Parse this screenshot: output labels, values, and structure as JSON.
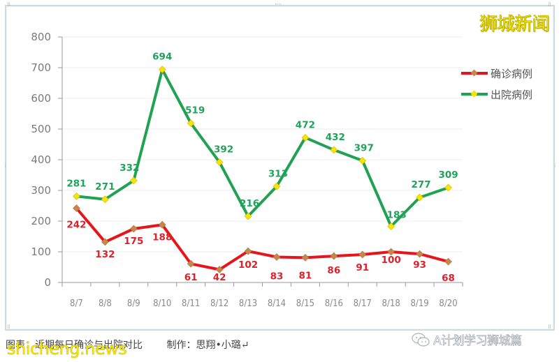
{
  "chart_data": {
    "type": "line",
    "title": "",
    "xlabel": "",
    "ylabel": "",
    "categories": [
      "8/7",
      "8/8",
      "8/9",
      "8/10",
      "8/11",
      "8/12",
      "8/13",
      "8/14",
      "8/15",
      "8/16",
      "8/17",
      "8/18",
      "8/19",
      "8/20"
    ],
    "series": [
      {
        "name": "确诊病例",
        "color": "#e8141c",
        "marker_color": "#c8874a",
        "values": [
          242,
          132,
          175,
          188,
          61,
          42,
          102,
          83,
          81,
          86,
          91,
          100,
          93,
          68
        ]
      },
      {
        "name": "出院病例",
        "color": "#1fa352",
        "marker_color": "#f5e600",
        "values": [
          281,
          271,
          332,
          694,
          519,
          392,
          216,
          313,
          472,
          432,
          397,
          183,
          277,
          309
        ]
      }
    ],
    "yticks": [
      "0",
      "100",
      "200",
      "300",
      "400",
      "500",
      "600",
      "700",
      "800"
    ],
    "ylim": [
      0,
      800
    ],
    "grid": true,
    "legend_position": "right"
  },
  "legend": {
    "items": [
      {
        "label": "确诊病例"
      },
      {
        "label": "出院病例"
      }
    ]
  },
  "brand": {
    "text": "狮城新闻"
  },
  "caption": {
    "title": "图表：近期每日确诊与出院对比",
    "credit": "制作：思翔•小璐↵"
  },
  "watermark": {
    "text": "shicheng.news"
  },
  "wechat": {
    "text": "A计划学习狮城篇"
  }
}
